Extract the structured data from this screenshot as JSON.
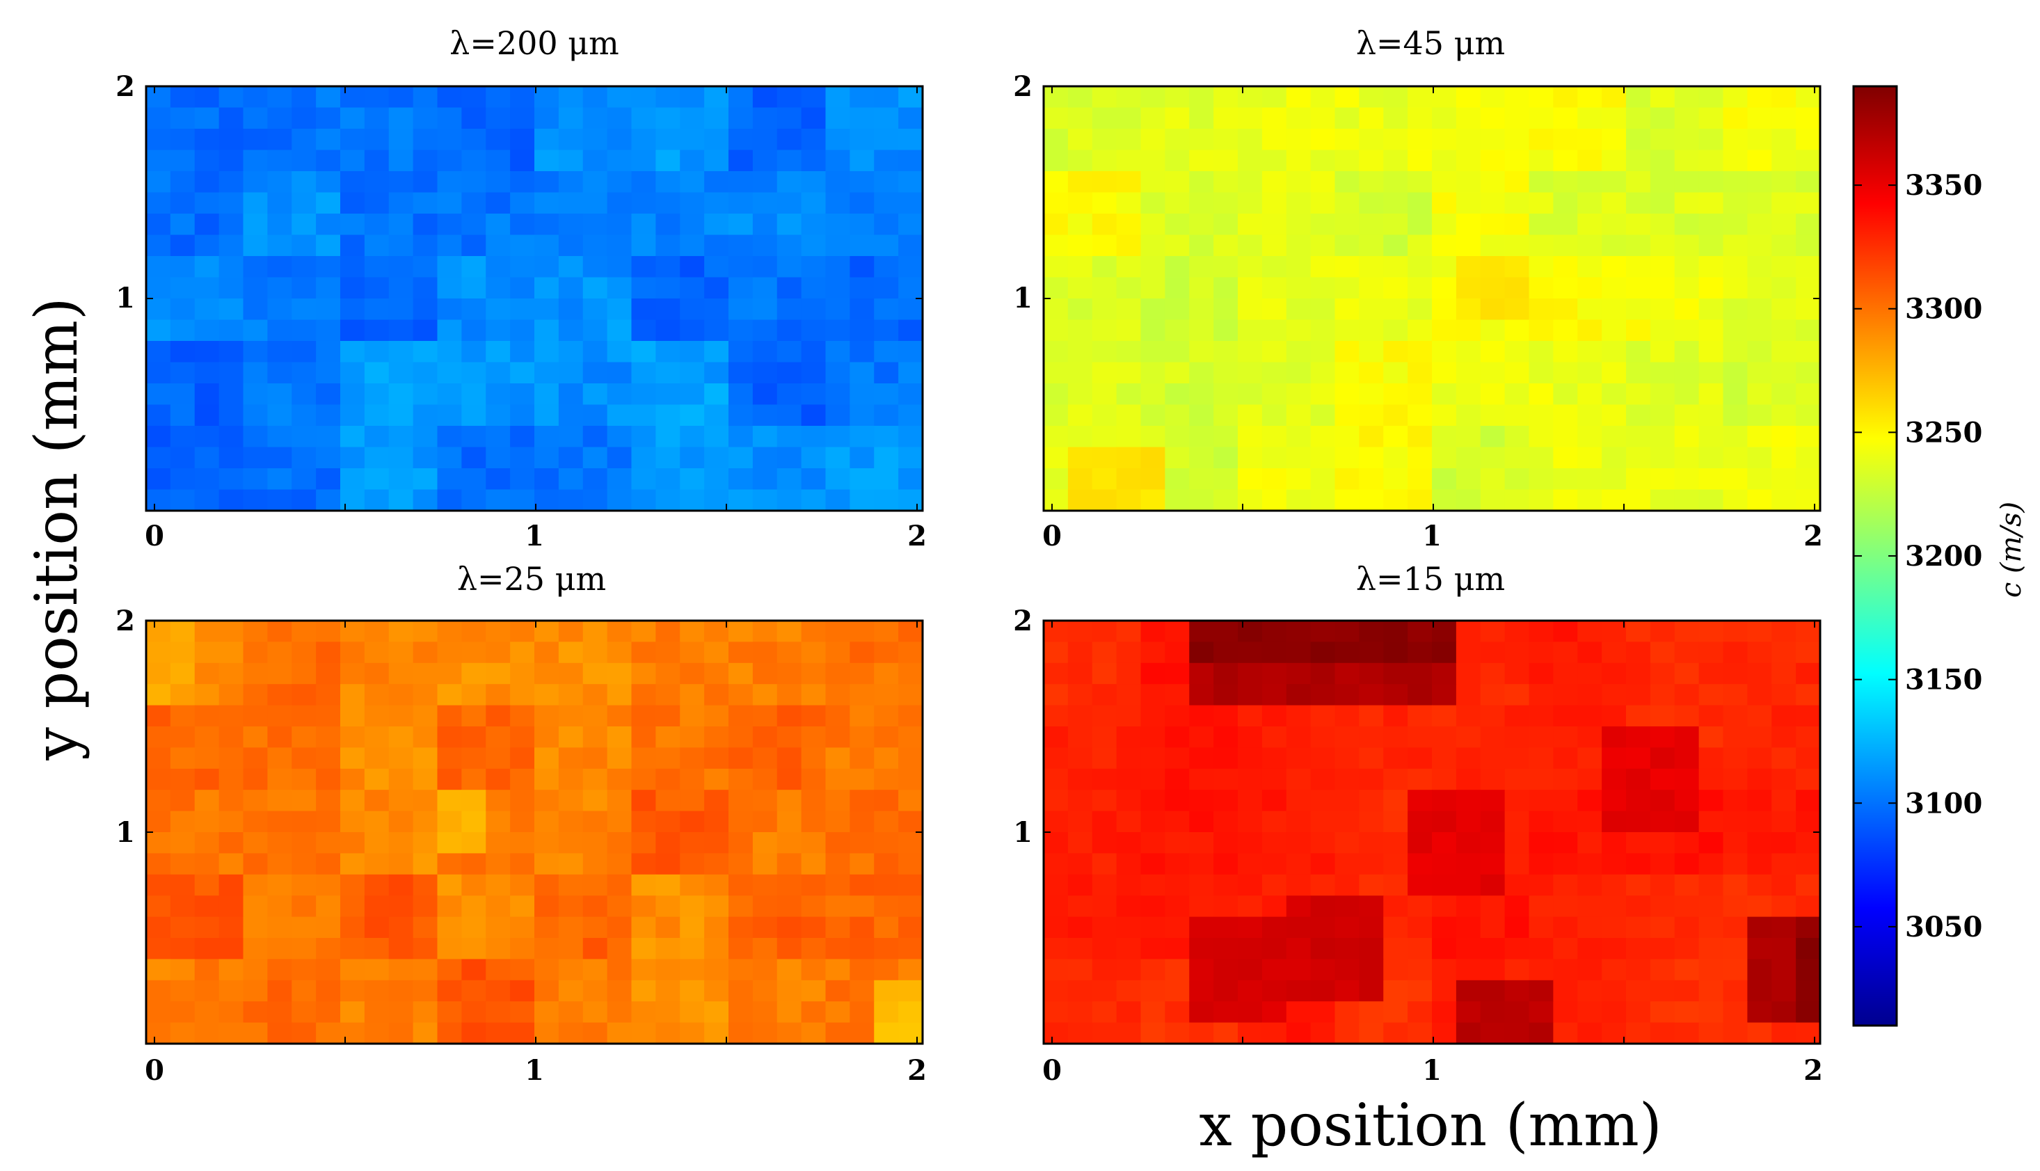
{
  "chart_data": [
    {
      "type": "heatmap",
      "title": "λ=200 μm",
      "lambda": "λ=200",
      "unit": "μm",
      "xlim": [
        0,
        2
      ],
      "ylim": [
        0,
        2
      ],
      "xticks": [
        "0",
        "1",
        "2"
      ],
      "yticks": [
        "1",
        "2"
      ],
      "mean_value": 3105,
      "variation": 18,
      "grid": [
        32,
        20
      ],
      "seed": 11,
      "hotspots": []
    },
    {
      "type": "heatmap",
      "title": "λ=45 μm",
      "lambda": "λ=45",
      "unit": "μm",
      "xlim": [
        0,
        2
      ],
      "ylim": [
        0,
        2
      ],
      "xticks": [
        "0",
        "1",
        "2"
      ],
      "yticks": [
        "1",
        "2"
      ],
      "mean_value": 3240,
      "variation": 14,
      "grid": [
        32,
        20
      ],
      "seed": 23,
      "hotspots": [
        {
          "x": [
            1.05,
            1.25
          ],
          "y": [
            0.9,
            1.15
          ],
          "value": 3258
        },
        {
          "x": [
            0.05,
            0.3
          ],
          "y": [
            0.0,
            0.25
          ],
          "value": 3258
        }
      ]
    },
    {
      "type": "heatmap",
      "title": "λ=25 μm",
      "lambda": "λ=25",
      "unit": "μm",
      "xlim": [
        0,
        2
      ],
      "ylim": [
        0,
        2
      ],
      "xticks": [
        "0",
        "1",
        "2"
      ],
      "yticks": [
        "1",
        "2"
      ],
      "mean_value": 3300,
      "variation": 16,
      "grid": [
        32,
        20
      ],
      "seed": 37,
      "hotspots": [
        {
          "x": [
            0.75,
            0.9
          ],
          "y": [
            0.9,
            1.2
          ],
          "value": 3275
        },
        {
          "x": [
            1.85,
            2.0
          ],
          "y": [
            0.0,
            0.25
          ],
          "value": 3272
        },
        {
          "x": [
            0.0,
            0.15
          ],
          "y": [
            1.6,
            2.0
          ],
          "value": 3280
        }
      ]
    },
    {
      "type": "heatmap",
      "title": "λ=15 μm",
      "lambda": "λ=15",
      "unit": "μm",
      "xlim": [
        0,
        2
      ],
      "ylim": [
        0,
        2
      ],
      "xticks": [
        "0",
        "1",
        "2"
      ],
      "yticks": [
        "1",
        "2"
      ],
      "mean_value": 3330,
      "variation": 10,
      "grid": [
        32,
        20
      ],
      "seed": 51,
      "hotspots": [
        {
          "x": [
            0.35,
            1.05
          ],
          "y": [
            1.75,
            2.0
          ],
          "value": 3385
        },
        {
          "x": [
            0.35,
            1.05
          ],
          "y": [
            1.65,
            1.75
          ],
          "value": 3372
        },
        {
          "x": [
            0.6,
            0.85
          ],
          "y": [
            0.2,
            0.7
          ],
          "value": 3360
        },
        {
          "x": [
            0.4,
            0.6
          ],
          "y": [
            0.1,
            0.55
          ],
          "value": 3357
        },
        {
          "x": [
            0.95,
            1.2
          ],
          "y": [
            0.7,
            1.15
          ],
          "value": 3352
        },
        {
          "x": [
            1.45,
            1.7
          ],
          "y": [
            1.0,
            1.45
          ],
          "value": 3352
        },
        {
          "x": [
            1.05,
            1.3
          ],
          "y": [
            0.0,
            0.35
          ],
          "value": 3368
        },
        {
          "x": [
            1.8,
            2.0
          ],
          "y": [
            0.1,
            0.55
          ],
          "value": 3372
        },
        {
          "x": [
            1.95,
            2.0
          ],
          "y": [
            0.1,
            0.55
          ],
          "value": 3385
        }
      ]
    }
  ],
  "colorbar": {
    "label": "c (m/s)",
    "min": 3010,
    "max": 3390,
    "ticks": [
      "3050",
      "3100",
      "3150",
      "3200",
      "3250",
      "3300",
      "3350"
    ],
    "tick_values": [
      3050,
      3100,
      3150,
      3200,
      3250,
      3300,
      3350
    ],
    "colormap": "jet"
  },
  "axes_labels": {
    "xlabel": "x position (mm)",
    "ylabel": "y position (mm)"
  }
}
